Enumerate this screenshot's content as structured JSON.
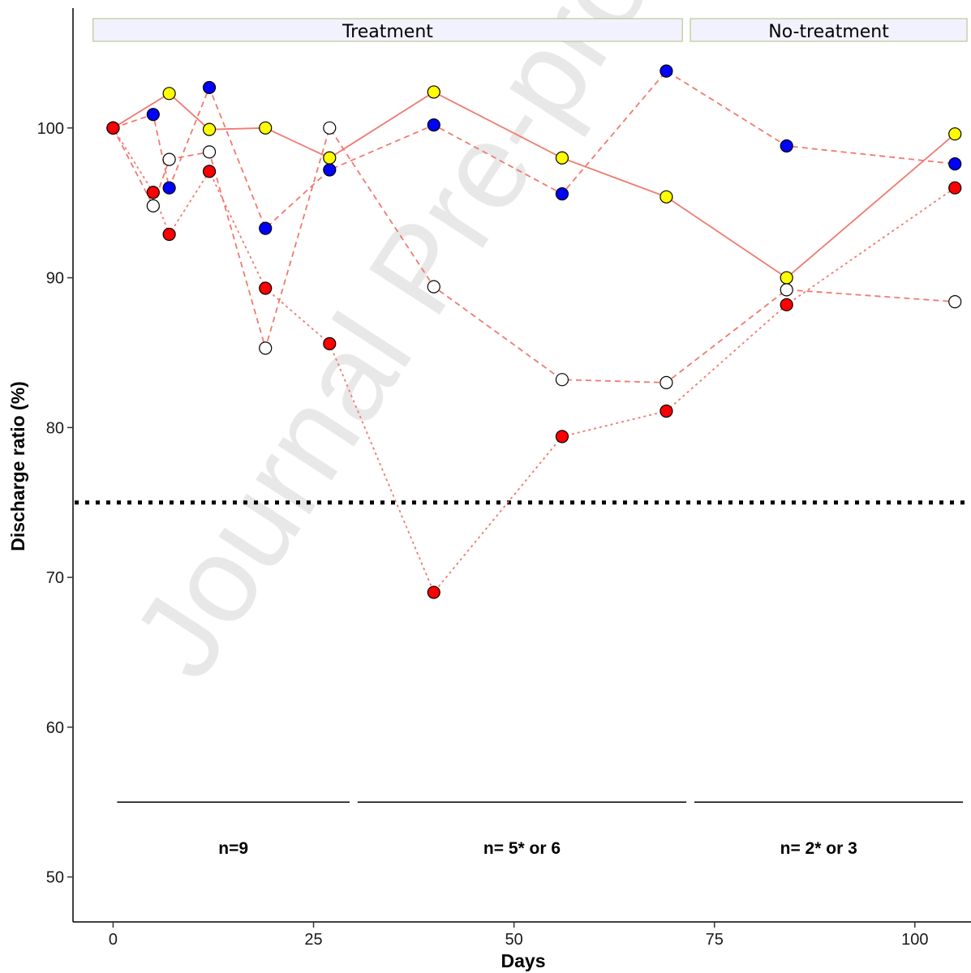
{
  "chart_data": {
    "type": "line",
    "xlabel": "Days",
    "ylabel": "Discharge ratio (%)",
    "xlim": [
      -5,
      107
    ],
    "ylim": [
      47,
      108
    ],
    "x_ticks": [
      0,
      25,
      50,
      75,
      100
    ],
    "y_ticks": [
      50,
      60,
      70,
      80,
      90,
      100
    ],
    "grid": false,
    "line_color": "#f07a70",
    "threshold": {
      "y": 75,
      "style": "dotted",
      "color": "#000000"
    },
    "panels": [
      {
        "label": "Treatment",
        "x_range": [
          -2.5,
          71
        ]
      },
      {
        "label": "No-treatment",
        "x_range": [
          72,
          106.5
        ]
      }
    ],
    "groups": [
      {
        "label": "n=9",
        "x_range": [
          0.5,
          29.5
        ],
        "y": 55,
        "label_x": 15
      },
      {
        "label": "n= 5* or 6",
        "x_range": [
          30.5,
          71.5
        ],
        "y": 55,
        "label_x": 51
      },
      {
        "label": "n= 2* or 3",
        "x_range": [
          72.5,
          106
        ],
        "y": 55,
        "label_x": 88
      }
    ],
    "series": [
      {
        "fill": "#ffff00",
        "line_style": "solid",
        "x": [
          0,
          7,
          12,
          19,
          27,
          40,
          56,
          69,
          84,
          105
        ],
        "y": [
          100,
          102.3,
          99.9,
          100,
          98,
          102.4,
          98,
          95.4,
          90,
          99.6
        ]
      },
      {
        "fill": "#0000ff",
        "line_style": "dashed",
        "x": [
          0,
          5,
          7,
          12,
          19,
          27,
          40,
          56,
          69,
          84,
          105
        ],
        "y": [
          100,
          100.9,
          96,
          102.7,
          93.3,
          97.2,
          100.2,
          95.6,
          103.8,
          98.8,
          97.6
        ]
      },
      {
        "fill": "#ffffff",
        "line_style": "dashed",
        "x": [
          0,
          5,
          7,
          12,
          19,
          27,
          40,
          56,
          69,
          84,
          105
        ],
        "y": [
          100,
          94.8,
          97.9,
          98.4,
          85.3,
          100,
          89.4,
          83.2,
          83,
          89.2,
          88.4
        ]
      },
      {
        "fill": "#ff0000",
        "line_style": "dotted",
        "x": [
          0,
          5,
          7,
          12,
          19,
          27,
          40,
          56,
          69,
          84,
          105
        ],
        "y": [
          100,
          95.7,
          92.9,
          97.1,
          89.3,
          85.6,
          69,
          79.4,
          81.1,
          88.2,
          96
        ]
      }
    ]
  },
  "watermark": "Journal Pre-proof"
}
